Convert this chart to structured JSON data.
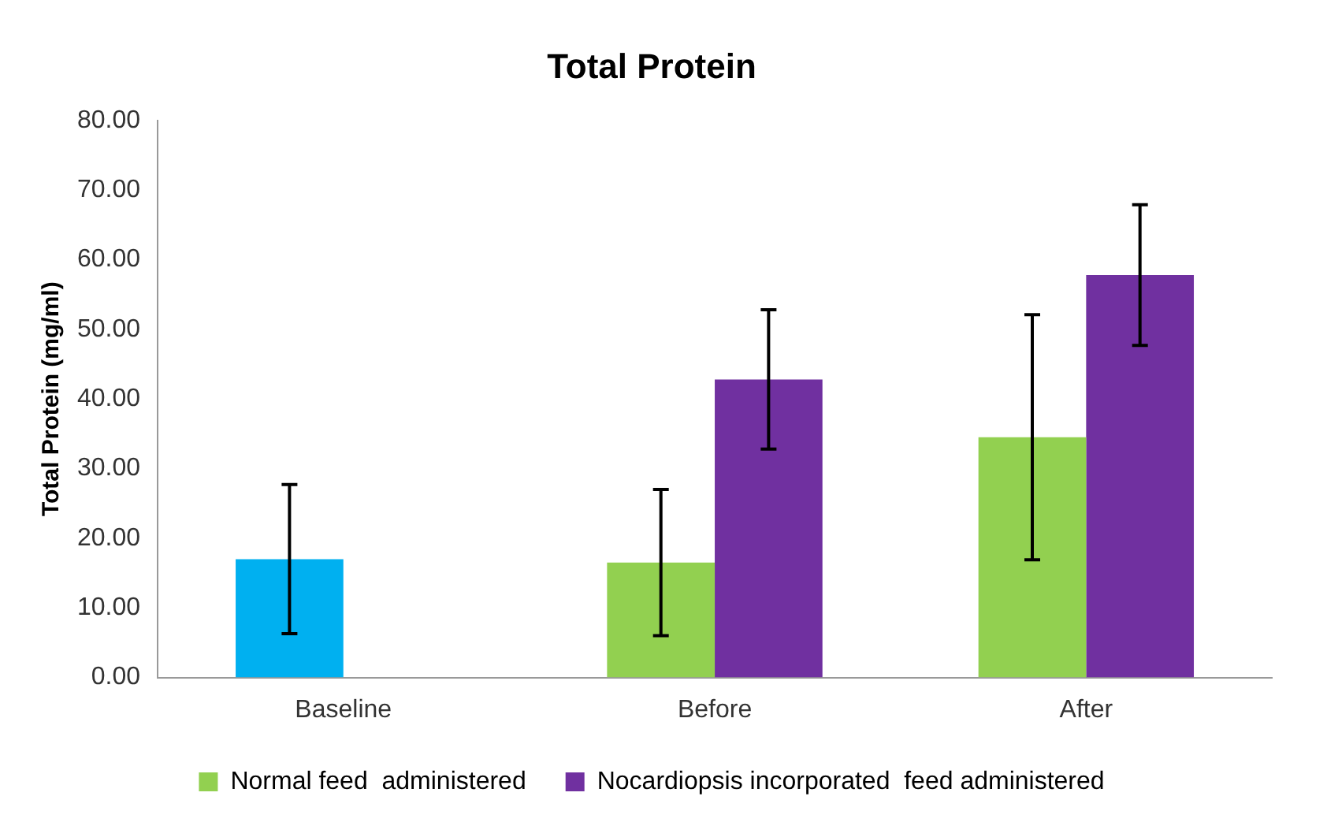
{
  "chart_data": {
    "type": "bar",
    "title": "Total Protein",
    "ylabel": "Total Protein (mg/ml)",
    "categories": [
      "Baseline",
      "Before",
      "After"
    ],
    "series": [
      {
        "name": "Normal feed  administered",
        "color": "#92d050",
        "colors": [
          "#00b0f0",
          "#92d050",
          "#92d050"
        ],
        "values": [
          17.0,
          16.5,
          34.5
        ],
        "errors": [
          10.7,
          10.5,
          17.6
        ]
      },
      {
        "name": "Nocardiopsis incorporated  feed administered",
        "color": "#7030a0",
        "values": [
          null,
          42.8,
          57.8
        ],
        "errors": [
          null,
          10.0,
          10.1
        ]
      }
    ],
    "ylim": [
      0,
      80
    ],
    "yticks": [
      {
        "value": 0,
        "label": "0.00"
      },
      {
        "value": 10,
        "label": "10.00"
      },
      {
        "value": 20,
        "label": "20.00"
      },
      {
        "value": 30,
        "label": "30.00"
      },
      {
        "value": 40,
        "label": "40.00"
      },
      {
        "value": 50,
        "label": "50.00"
      },
      {
        "value": 60,
        "label": "60.00"
      },
      {
        "value": 70,
        "label": "70.00"
      },
      {
        "value": 80,
        "label": "80.00"
      }
    ],
    "grid": false,
    "legend": "bottom"
  }
}
